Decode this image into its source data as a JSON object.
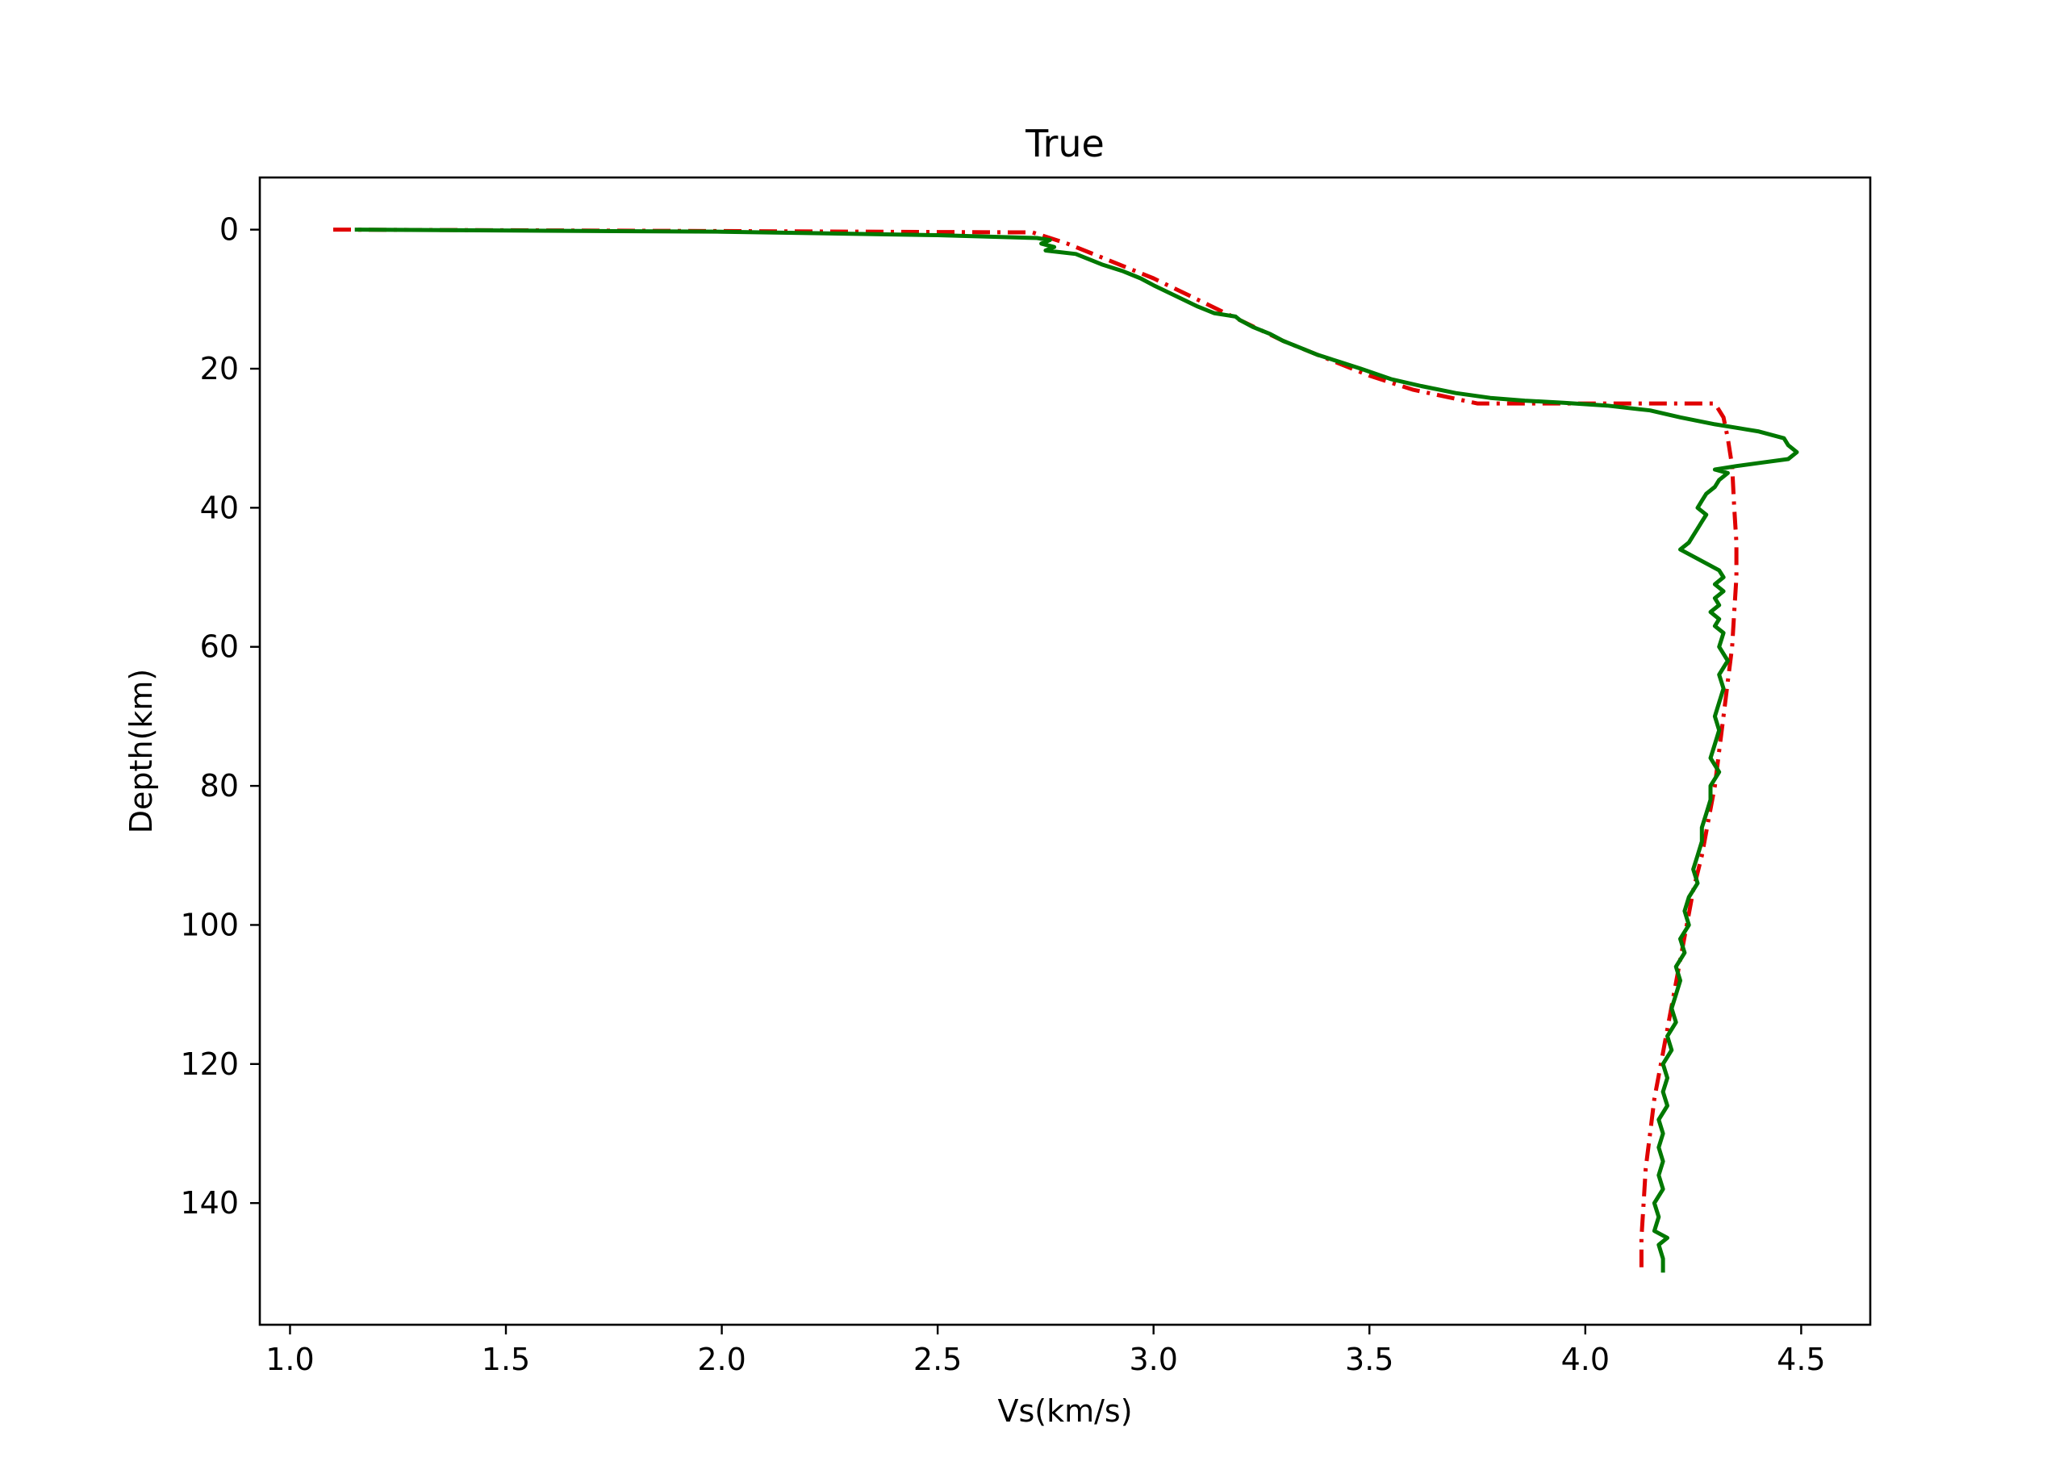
{
  "chart_data": {
    "type": "line",
    "title": "True",
    "xlabel": "Vs(km/s)",
    "ylabel": "Depth(km)",
    "xlim": [
      0.93,
      4.66
    ],
    "ylim": [
      157.5,
      -7.5
    ],
    "y_inverted": true,
    "grid": false,
    "legend": "none",
    "xticks": [
      {
        "value": 1.0,
        "label": "1.0"
      },
      {
        "value": 1.5,
        "label": "1.5"
      },
      {
        "value": 2.0,
        "label": "2.0"
      },
      {
        "value": 2.5,
        "label": "2.5"
      },
      {
        "value": 3.0,
        "label": "3.0"
      },
      {
        "value": 3.5,
        "label": "3.5"
      },
      {
        "value": 4.0,
        "label": "4.0"
      },
      {
        "value": 4.5,
        "label": "4.5"
      }
    ],
    "yticks": [
      {
        "value": 0,
        "label": "0"
      },
      {
        "value": 20,
        "label": "20"
      },
      {
        "value": 40,
        "label": "40"
      },
      {
        "value": 60,
        "label": "60"
      },
      {
        "value": 80,
        "label": "80"
      },
      {
        "value": 100,
        "label": "100"
      },
      {
        "value": 120,
        "label": "120"
      },
      {
        "value": 140,
        "label": "140"
      }
    ],
    "series": [
      {
        "color": "#e00000",
        "style": "dashdot",
        "points": [
          [
            1.1,
            0.0
          ],
          [
            2.0,
            0.2
          ],
          [
            2.72,
            0.4
          ],
          [
            2.8,
            2.0
          ],
          [
            2.9,
            4.5
          ],
          [
            3.0,
            7.0
          ],
          [
            3.1,
            10.0
          ],
          [
            3.2,
            13.0
          ],
          [
            3.3,
            16.0
          ],
          [
            3.4,
            18.5
          ],
          [
            3.5,
            21.0
          ],
          [
            3.6,
            23.0
          ],
          [
            3.75,
            25.0
          ],
          [
            4.0,
            25.0
          ],
          [
            4.3,
            25.0
          ],
          [
            4.32,
            27.0
          ],
          [
            4.33,
            30.0
          ],
          [
            4.34,
            34.0
          ],
          [
            4.345,
            40.0
          ],
          [
            4.35,
            45.0
          ],
          [
            4.35,
            50.0
          ],
          [
            4.345,
            55.0
          ],
          [
            4.34,
            60.0
          ],
          [
            4.33,
            65.0
          ],
          [
            4.32,
            70.0
          ],
          [
            4.31,
            75.0
          ],
          [
            4.3,
            80.0
          ],
          [
            4.285,
            85.0
          ],
          [
            4.27,
            90.0
          ],
          [
            4.25,
            95.0
          ],
          [
            4.235,
            100.0
          ],
          [
            4.22,
            105.0
          ],
          [
            4.205,
            110.0
          ],
          [
            4.19,
            115.0
          ],
          [
            4.175,
            120.0
          ],
          [
            4.16,
            125.0
          ],
          [
            4.15,
            130.0
          ],
          [
            4.14,
            135.0
          ],
          [
            4.135,
            140.0
          ],
          [
            4.13,
            145.0
          ],
          [
            4.13,
            150.0
          ]
        ]
      },
      {
        "color": "#007800",
        "style": "solid",
        "points": [
          [
            1.15,
            0.0
          ],
          [
            2.0,
            0.3
          ],
          [
            2.5,
            0.8
          ],
          [
            2.73,
            1.2
          ],
          [
            2.76,
            1.5
          ],
          [
            2.74,
            2.0
          ],
          [
            2.77,
            2.5
          ],
          [
            2.75,
            3.0
          ],
          [
            2.82,
            3.5
          ],
          [
            2.88,
            5.0
          ],
          [
            2.93,
            6.0
          ],
          [
            2.97,
            7.0
          ],
          [
            3.0,
            8.0
          ],
          [
            3.05,
            9.5
          ],
          [
            3.1,
            11.0
          ],
          [
            3.14,
            12.0
          ],
          [
            3.19,
            12.5
          ],
          [
            3.2,
            13.0
          ],
          [
            3.23,
            14.0
          ],
          [
            3.27,
            15.0
          ],
          [
            3.3,
            16.0
          ],
          [
            3.34,
            17.0
          ],
          [
            3.38,
            18.0
          ],
          [
            3.43,
            19.0
          ],
          [
            3.48,
            20.0
          ],
          [
            3.55,
            21.5
          ],
          [
            3.62,
            22.5
          ],
          [
            3.7,
            23.5
          ],
          [
            3.78,
            24.2
          ],
          [
            3.86,
            24.6
          ],
          [
            3.95,
            24.9
          ],
          [
            4.05,
            25.3
          ],
          [
            4.15,
            26.0
          ],
          [
            4.22,
            27.0
          ],
          [
            4.3,
            28.0
          ],
          [
            4.4,
            29.0
          ],
          [
            4.46,
            30.0
          ],
          [
            4.47,
            31.0
          ],
          [
            4.49,
            32.0
          ],
          [
            4.47,
            33.0
          ],
          [
            4.41,
            33.5
          ],
          [
            4.35,
            34.0
          ],
          [
            4.3,
            34.5
          ],
          [
            4.33,
            35.0
          ],
          [
            4.31,
            36.0
          ],
          [
            4.3,
            37.0
          ],
          [
            4.28,
            38.0
          ],
          [
            4.27,
            39.0
          ],
          [
            4.26,
            40.0
          ],
          [
            4.28,
            41.0
          ],
          [
            4.27,
            42.0
          ],
          [
            4.26,
            43.0
          ],
          [
            4.25,
            44.0
          ],
          [
            4.24,
            45.0
          ],
          [
            4.22,
            46.0
          ],
          [
            4.25,
            47.0
          ],
          [
            4.28,
            48.0
          ],
          [
            4.31,
            49.0
          ],
          [
            4.32,
            50.0
          ],
          [
            4.3,
            51.0
          ],
          [
            4.32,
            52.0
          ],
          [
            4.3,
            53.0
          ],
          [
            4.31,
            54.0
          ],
          [
            4.29,
            55.0
          ],
          [
            4.31,
            56.0
          ],
          [
            4.3,
            57.0
          ],
          [
            4.32,
            58.0
          ],
          [
            4.31,
            60.0
          ],
          [
            4.33,
            62.0
          ],
          [
            4.31,
            64.0
          ],
          [
            4.32,
            66.0
          ],
          [
            4.31,
            68.0
          ],
          [
            4.3,
            70.0
          ],
          [
            4.31,
            72.0
          ],
          [
            4.3,
            74.0
          ],
          [
            4.29,
            76.0
          ],
          [
            4.31,
            78.0
          ],
          [
            4.29,
            80.0
          ],
          [
            4.29,
            82.0
          ],
          [
            4.28,
            84.0
          ],
          [
            4.27,
            86.0
          ],
          [
            4.27,
            88.0
          ],
          [
            4.26,
            90.0
          ],
          [
            4.25,
            92.0
          ],
          [
            4.26,
            94.0
          ],
          [
            4.24,
            96.0
          ],
          [
            4.23,
            98.0
          ],
          [
            4.24,
            100.0
          ],
          [
            4.22,
            102.0
          ],
          [
            4.23,
            104.0
          ],
          [
            4.21,
            106.0
          ],
          [
            4.22,
            108.0
          ],
          [
            4.21,
            110.0
          ],
          [
            4.2,
            112.0
          ],
          [
            4.21,
            114.0
          ],
          [
            4.19,
            116.0
          ],
          [
            4.2,
            118.0
          ],
          [
            4.18,
            120.0
          ],
          [
            4.19,
            122.0
          ],
          [
            4.18,
            124.0
          ],
          [
            4.19,
            126.0
          ],
          [
            4.17,
            128.0
          ],
          [
            4.18,
            130.0
          ],
          [
            4.17,
            132.0
          ],
          [
            4.18,
            134.0
          ],
          [
            4.17,
            136.0
          ],
          [
            4.18,
            138.0
          ],
          [
            4.16,
            140.0
          ],
          [
            4.17,
            142.0
          ],
          [
            4.16,
            144.0
          ],
          [
            4.19,
            145.0
          ],
          [
            4.17,
            146.0
          ],
          [
            4.18,
            148.0
          ],
          [
            4.18,
            150.0
          ]
        ]
      }
    ]
  }
}
